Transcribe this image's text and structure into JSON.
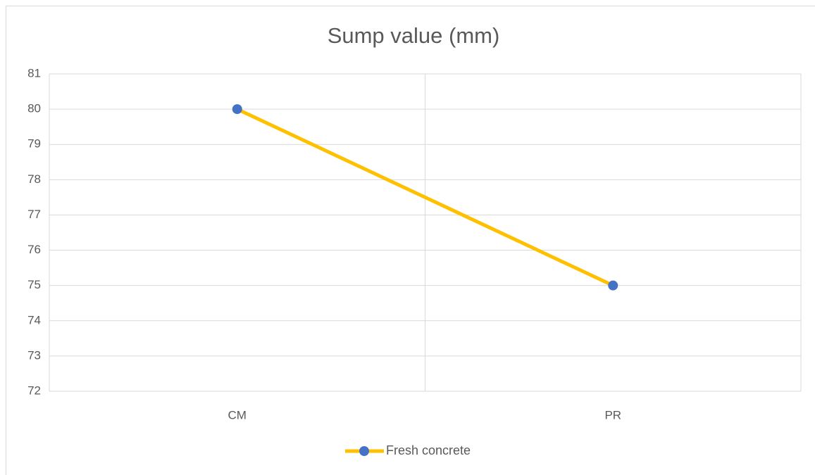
{
  "chart_data": {
    "type": "line",
    "title": "Sump value (mm)",
    "categories": [
      "CM",
      "PR"
    ],
    "series": [
      {
        "name": "Fresh concrete",
        "color": "#ffc000",
        "marker_color": "#4472c4",
        "values": [
          80,
          75
        ]
      }
    ],
    "ylim": [
      72,
      81
    ],
    "yticks": [
      72,
      73,
      74,
      75,
      76,
      77,
      78,
      79,
      80,
      81
    ],
    "grid": true,
    "legend": "bottom"
  }
}
